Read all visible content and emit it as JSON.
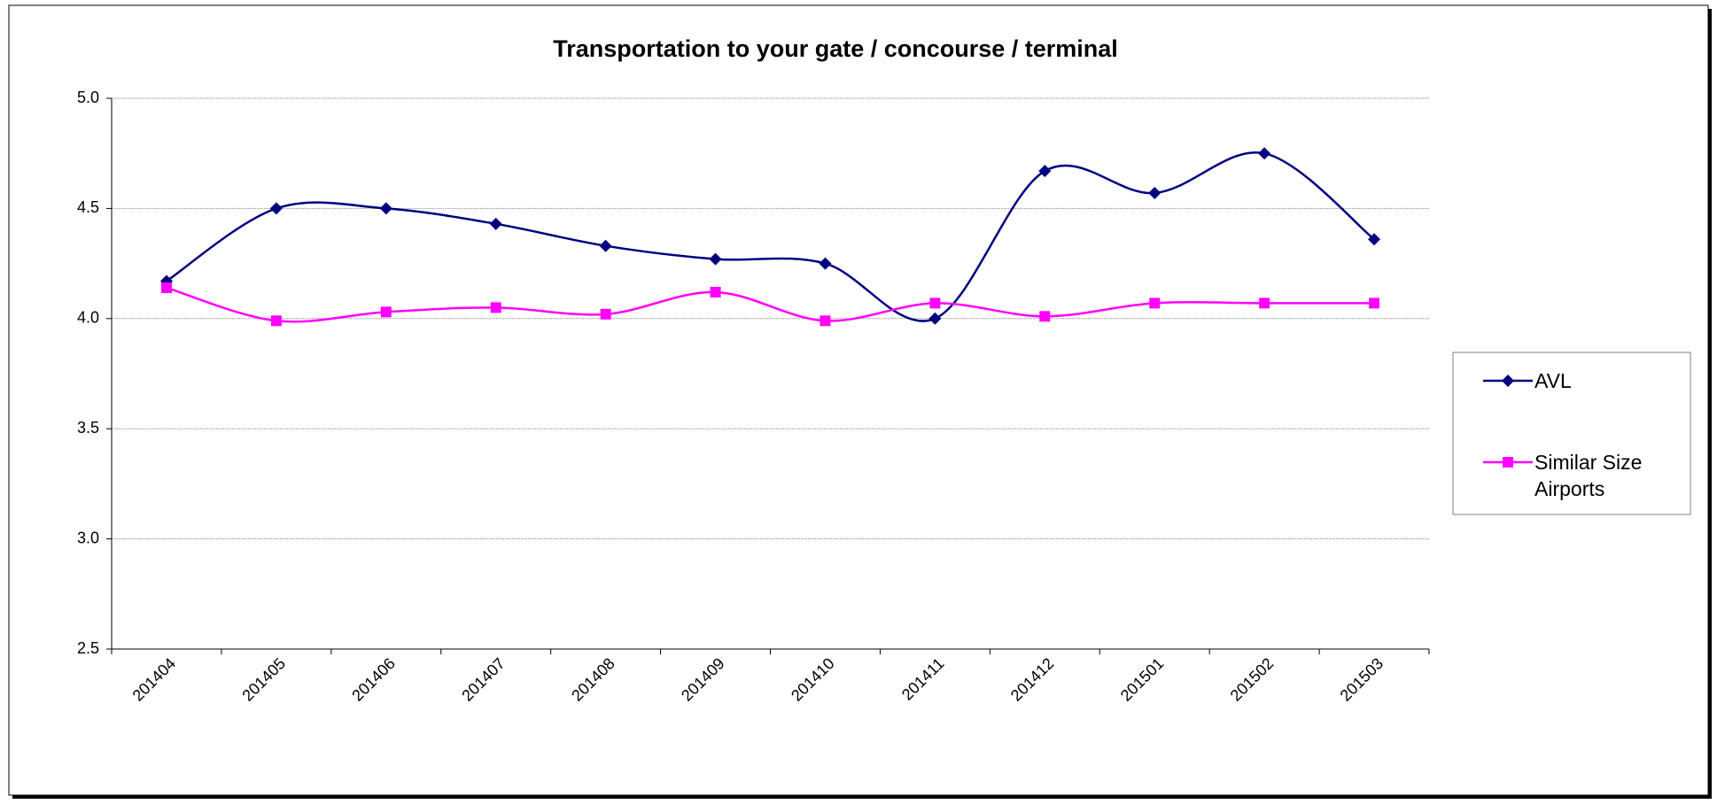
{
  "chart_data": {
    "type": "line",
    "title": "Transportation to your gate / concourse / terminal",
    "categories": [
      "201404",
      "201405",
      "201406",
      "201407",
      "201408",
      "201409",
      "201410",
      "201411",
      "201412",
      "201501",
      "201502",
      "201503"
    ],
    "series": [
      {
        "name": "AVL",
        "color": "#000080",
        "marker": "diamond",
        "values": [
          4.17,
          4.5,
          4.5,
          4.43,
          4.33,
          4.27,
          4.25,
          4.0,
          4.67,
          4.57,
          4.75,
          4.36
        ]
      },
      {
        "name": "Similar Size Airports",
        "color": "#ff00ff",
        "marker": "square",
        "values": [
          4.14,
          3.99,
          4.03,
          4.05,
          4.02,
          4.12,
          3.99,
          4.07,
          4.01,
          4.07,
          4.07,
          4.07
        ]
      }
    ],
    "ylim": [
      2.5,
      5.0
    ],
    "yticks": [
      {
        "value": 2.5,
        "label": "2.5"
      },
      {
        "value": 3,
        "label": "3.0"
      },
      {
        "value": 3.5,
        "label": "3.5"
      },
      {
        "value": 4,
        "label": "4.0"
      },
      {
        "value": 4.5,
        "label": "4.5"
      },
      {
        "value": 5,
        "label": "5.0"
      }
    ],
    "grid": true,
    "legend": "right"
  }
}
